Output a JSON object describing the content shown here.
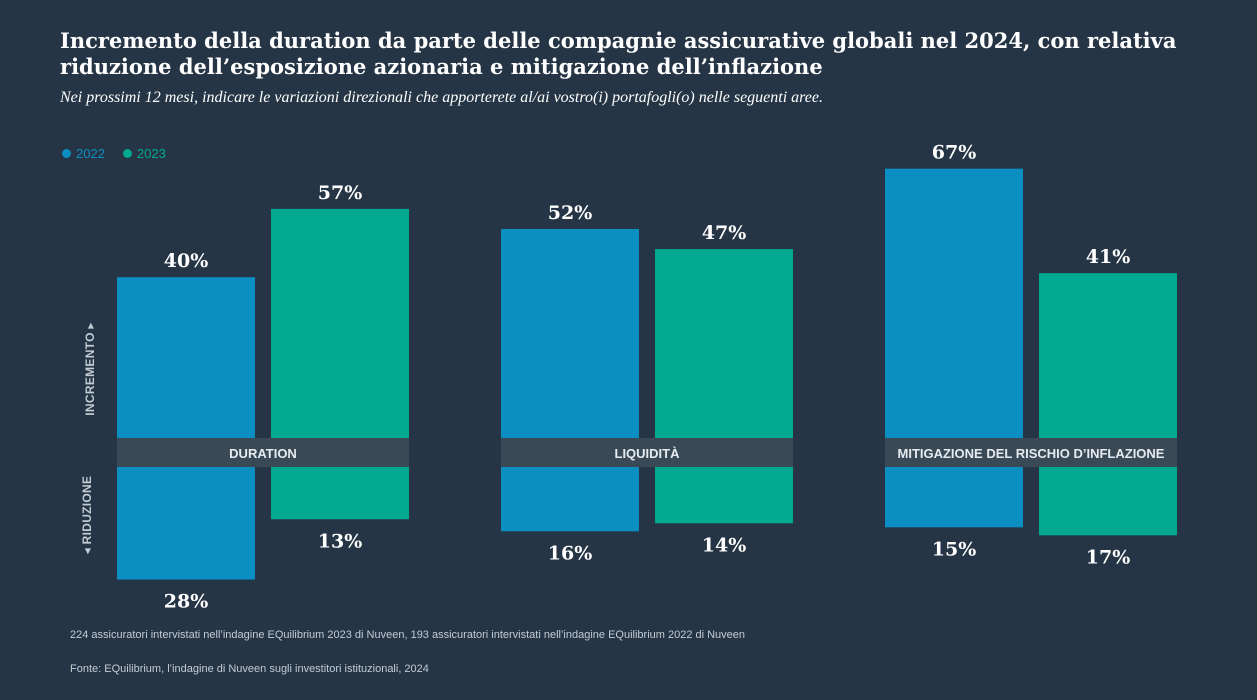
{
  "title": "Incremento della duration da parte delle compagnie assicurative globali nel 2024, con relativa riduzione dell’esposizione azionaria e mitigazione dell’inflazione",
  "subtitle": "Nei prossimi 12 mesi, indicare le variazioni direzionali che apporterete al/ai vostro(i) portafogli(o) nelle seguenti aree.",
  "axis": {
    "up_label": "INCREMENTO",
    "down_label": "RIDUZIONE",
    "up_arrow": "▸",
    "down_arrow": "◂"
  },
  "colors": {
    "background": "#263545",
    "band": "#3a4956",
    "series_2022": "#0b8fc3",
    "series_2023": "#00a98f"
  },
  "chart_data": {
    "type": "bar",
    "title": "Incremento della duration da parte delle compagnie assicurative globali nel 2024, con relativa riduzione dell’esposizione azionaria e mitigazione dell’inflazione",
    "categories": [
      "DURATION",
      "LIQUIDITÀ",
      "MITIGAZIONE DEL RISCHIO D’INFLAZIONE"
    ],
    "series": [
      {
        "name": "2022",
        "increase": [
          40,
          52,
          67
        ],
        "decrease": [
          28,
          16,
          15
        ]
      },
      {
        "name": "2023",
        "increase": [
          57,
          47,
          41
        ],
        "decrease": [
          13,
          14,
          17
        ]
      }
    ],
    "unit": "%",
    "legend": "top-left",
    "ylabel_up": "INCREMENTO",
    "ylabel_down": "RIDUZIONE"
  },
  "footnotes": {
    "sample": "224 assicuratori intervistati nell’indagine EQuilibrium 2023 di Nuveen, 193 assicuratori intervistati nell’indagine EQuilibrium 2022 di Nuveen",
    "source": "Fonte: EQuilibrium, l’indagine di Nuveen sugli investitori istituzionali, 2024"
  }
}
